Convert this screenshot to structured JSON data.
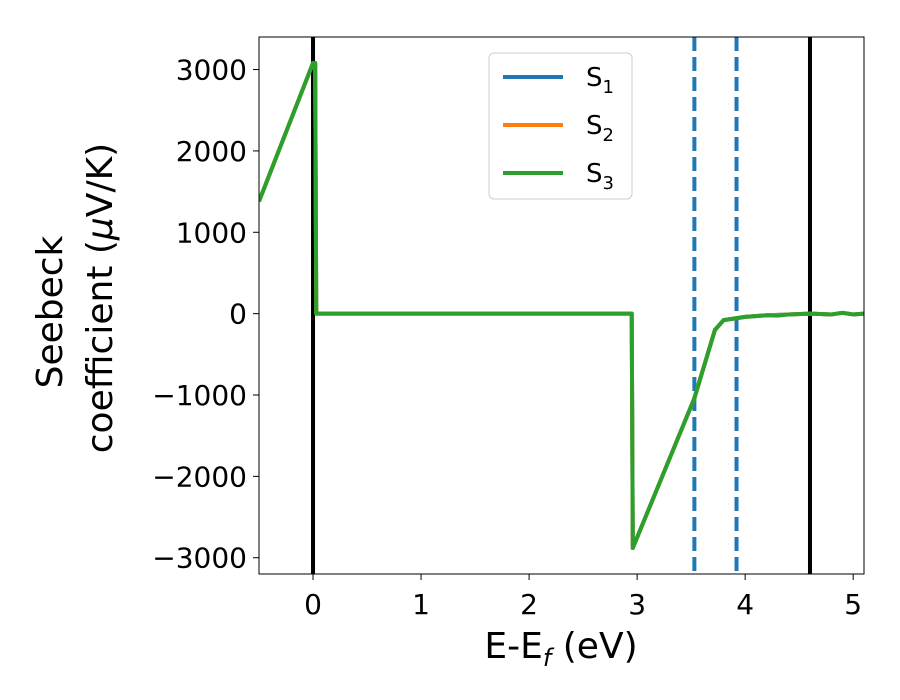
{
  "chart_data": {
    "type": "line",
    "xlabel": {
      "main": "E-E",
      "sub": "f",
      "unit": " (eV)"
    },
    "ylabel": {
      "line1": "Seebeck",
      "line2": "coefficient  (",
      "mu": "μ",
      "rest": "V/K)"
    },
    "xlim": [
      -0.5,
      5.1
    ],
    "ylim": [
      -3200,
      3400
    ],
    "x_ticks": [
      0,
      1,
      2,
      3,
      4,
      5
    ],
    "x_tick_labels": [
      "0",
      "1",
      "2",
      "3",
      "4",
      "5"
    ],
    "y_ticks": [
      -3000,
      -2000,
      -1000,
      0,
      1000,
      2000,
      3000
    ],
    "y_tick_labels": [
      "−3000",
      "−2000",
      "−1000",
      "0",
      "1000",
      "2000",
      "3000"
    ],
    "legend_position": "top-center",
    "series": [
      {
        "name": "S",
        "sub": "1",
        "color": "#1f77b4",
        "points": [
          [
            -0.5,
            1380
          ],
          [
            0,
            3080
          ],
          [
            0.02,
            3080
          ],
          [
            0.03,
            0
          ],
          [
            2.95,
            0
          ],
          [
            2.96,
            -2880
          ],
          [
            3.53,
            -1040
          ],
          [
            3.72,
            -200
          ],
          [
            3.8,
            -80
          ],
          [
            3.9,
            -60
          ],
          [
            4.0,
            -40
          ],
          [
            4.2,
            -20
          ],
          [
            4.4,
            -10
          ],
          [
            4.6,
            0
          ],
          [
            4.8,
            -10
          ],
          [
            4.9,
            10
          ],
          [
            5.0,
            -10
          ],
          [
            5.1,
            0
          ]
        ]
      },
      {
        "name": "S",
        "sub": "2",
        "color": "#ff7f0e",
        "points": [
          [
            -0.5,
            1380
          ],
          [
            0,
            3080
          ],
          [
            0.02,
            3080
          ],
          [
            0.03,
            0
          ],
          [
            2.95,
            0
          ],
          [
            2.96,
            -2880
          ],
          [
            3.53,
            -1040
          ],
          [
            3.72,
            -200
          ],
          [
            3.8,
            -80
          ],
          [
            3.9,
            -60
          ],
          [
            4.0,
            -40
          ],
          [
            4.2,
            -20
          ],
          [
            4.4,
            -10
          ],
          [
            4.6,
            0
          ],
          [
            4.8,
            -10
          ],
          [
            4.9,
            10
          ],
          [
            5.0,
            -10
          ],
          [
            5.1,
            0
          ]
        ]
      },
      {
        "name": "S",
        "sub": "3",
        "color": "#2ca02c",
        "points": [
          [
            -0.5,
            1380
          ],
          [
            0,
            3080
          ],
          [
            0.02,
            3080
          ],
          [
            0.03,
            0
          ],
          [
            2.95,
            0
          ],
          [
            2.96,
            -2880
          ],
          [
            3.53,
            -1040
          ],
          [
            3.72,
            -200
          ],
          [
            3.8,
            -80
          ],
          [
            3.9,
            -60
          ],
          [
            4.0,
            -40
          ],
          [
            4.1,
            -30
          ],
          [
            4.2,
            -20
          ],
          [
            4.3,
            -25
          ],
          [
            4.4,
            -10
          ],
          [
            4.6,
            0
          ],
          [
            4.7,
            -5
          ],
          [
            4.8,
            -10
          ],
          [
            4.9,
            10
          ],
          [
            5.0,
            -10
          ],
          [
            5.1,
            0
          ]
        ]
      }
    ],
    "vlines_solid": {
      "color": "#000000",
      "x": [
        0,
        4.6
      ]
    },
    "vlines_dashed": {
      "color": "#1f77b4",
      "x": [
        3.53,
        3.92
      ]
    }
  }
}
